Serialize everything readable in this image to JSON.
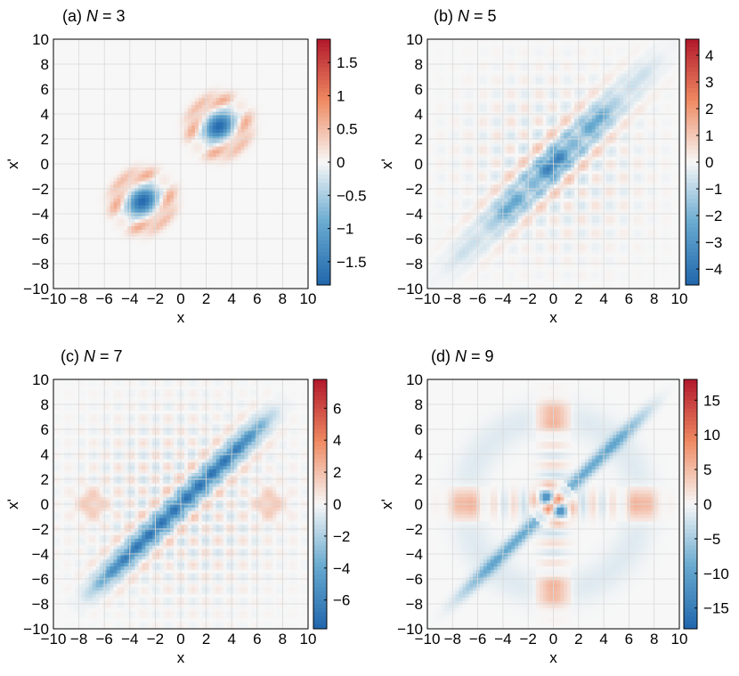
{
  "figure": {
    "colors": {
      "cmap_low": "#2166ac",
      "cmap_mid": "#f7f7f7",
      "cmap_high": "#b2182b",
      "grid": "#d9d9d9",
      "frame": "#000000"
    }
  },
  "chart_data": [
    {
      "type": "heatmap",
      "panel_label": "(a)",
      "title_var": "N",
      "title_rest": " = 3",
      "N": 3,
      "xlabel": "x",
      "ylabel": "x'",
      "xlim": [
        -10,
        10
      ],
      "ylim": [
        -10,
        10
      ],
      "xticks": [
        -10,
        -8,
        -6,
        -4,
        -2,
        0,
        2,
        4,
        6,
        8,
        10
      ],
      "yticks": [
        -10,
        -8,
        -6,
        -4,
        -2,
        0,
        2,
        4,
        6,
        8,
        10
      ],
      "grid": true,
      "colorbar": {
        "range": [
          -1.85,
          1.85
        ],
        "ticks": [
          -1.5,
          -1,
          -0.5,
          0,
          0.5,
          1,
          1.5
        ]
      },
      "features": [
        {
          "kind": "negative-lobe",
          "center": [
            3,
            3
          ],
          "peak": -1.8
        },
        {
          "kind": "negative-lobe",
          "center": [
            -3,
            -3
          ],
          "peak": -1.8
        },
        {
          "kind": "positive-ring",
          "centers": [
            [
              3,
              3
            ],
            [
              -3,
              -3
            ]
          ],
          "peak": 0.8
        }
      ]
    },
    {
      "type": "heatmap",
      "panel_label": "(b)",
      "title_var": "N",
      "title_rest": " = 5",
      "N": 5,
      "xlabel": "x",
      "ylabel": "x'",
      "xlim": [
        -10,
        10
      ],
      "ylim": [
        -10,
        10
      ],
      "xticks": [
        -10,
        -8,
        -6,
        -4,
        -2,
        0,
        2,
        4,
        6,
        8,
        10
      ],
      "yticks": [
        -10,
        -8,
        -6,
        -4,
        -2,
        0,
        2,
        4,
        6,
        8,
        10
      ],
      "grid": true,
      "colorbar": {
        "range": [
          -4.6,
          4.6
        ],
        "ticks": [
          -4,
          -3,
          -2,
          -1,
          0,
          1,
          2,
          3,
          4
        ]
      },
      "features": [
        {
          "kind": "negative-diagonal-band",
          "from": [
            -5,
            -5
          ],
          "to": [
            5,
            5
          ],
          "peak": -4.2
        },
        {
          "kind": "positive-fringes",
          "peak": 2.0
        }
      ]
    },
    {
      "type": "heatmap",
      "panel_label": "(c)",
      "title_var": "N",
      "title_rest": " = 7",
      "N": 7,
      "xlabel": "x",
      "ylabel": "x'",
      "xlim": [
        -10,
        10
      ],
      "ylim": [
        -10,
        10
      ],
      "xticks": [
        -10,
        -8,
        -6,
        -4,
        -2,
        0,
        2,
        4,
        6,
        8,
        10
      ],
      "yticks": [
        -10,
        -8,
        -6,
        -4,
        -2,
        0,
        2,
        4,
        6,
        8,
        10
      ],
      "grid": true,
      "colorbar": {
        "range": [
          -7.8,
          7.8
        ],
        "ticks": [
          -6,
          -4,
          -2,
          0,
          2,
          4,
          6
        ]
      },
      "features": [
        {
          "kind": "negative-diagonal-band",
          "from": [
            -6,
            -6
          ],
          "to": [
            6,
            6
          ],
          "peak": -7.2
        },
        {
          "kind": "positive-fringes",
          "peak": 2.5
        }
      ]
    },
    {
      "type": "heatmap",
      "panel_label": "(d)",
      "title_var": "N",
      "title_rest": " = 9",
      "N": 9,
      "xlabel": "x",
      "ylabel": "x'",
      "xlim": [
        -10,
        10
      ],
      "ylim": [
        -10,
        10
      ],
      "xticks": [
        -10,
        -8,
        -6,
        -4,
        -2,
        0,
        2,
        4,
        6,
        8,
        10
      ],
      "yticks": [
        -10,
        -8,
        -6,
        -4,
        -2,
        0,
        2,
        4,
        6,
        8,
        10
      ],
      "grid": true,
      "colorbar": {
        "range": [
          -18,
          18
        ],
        "ticks": [
          -15,
          -10,
          -5,
          0,
          5,
          10,
          15
        ]
      },
      "features": [
        {
          "kind": "negative-diagonal-band",
          "from": [
            -7,
            -7
          ],
          "to": [
            7,
            7
          ],
          "peak": -9
        },
        {
          "kind": "checkerboard-center",
          "center": [
            0,
            0
          ],
          "peak": 17
        },
        {
          "kind": "positive-spots",
          "centers": [
            [
              -7,
              0
            ],
            [
              7,
              0
            ],
            [
              0,
              7
            ],
            [
              0,
              -7
            ]
          ],
          "peak": 6
        }
      ]
    }
  ]
}
